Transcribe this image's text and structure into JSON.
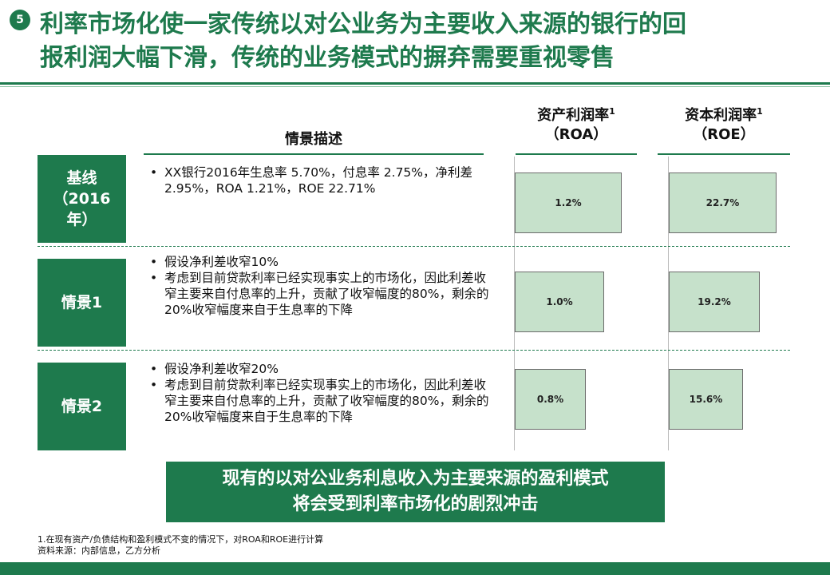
{
  "slide": {
    "page_number": "5",
    "title_line1": "利率市场化使一家传统以对公业务为主要收入来源的银行的回",
    "title_line2": "报利润大幅下滑，传统的业务模式的摒弃需要重视零售"
  },
  "table": {
    "headers": {
      "description": "情景描述",
      "roa_line1": "资产利润率",
      "roa_sup": "1",
      "roa_line2": "（ROA）",
      "roe_line1": "资本利润率",
      "roe_sup": "1",
      "roe_line2": "（ROE）"
    },
    "rows": [
      {
        "label_lines": [
          "基线",
          "（2016",
          "年）"
        ],
        "bullets": [
          "XX银行2016年生息率 5.70%，付息率 2.75%，净利差 2.95%，ROA 1.21%，ROE 22.71%"
        ],
        "roa": "1.2%",
        "roa_value": 1.2,
        "roe": "22.7%",
        "roe_value": 22.7
      },
      {
        "label_lines": [
          "情景1"
        ],
        "bullets": [
          "假设净利差收窄10%",
          "考虑到目前贷款利率已经实现事实上的市场化，因此利差收窄主要来自付息率的上升，贡献了收窄幅度的80%，剩余的20%收窄幅度来自于生息率的下降"
        ],
        "roa": "1.0%",
        "roa_value": 1.0,
        "roe": "19.2%",
        "roe_value": 19.2
      },
      {
        "label_lines": [
          "情景2"
        ],
        "bullets": [
          "假设净利差收窄20%",
          "考虑到目前贷款利率已经实现事实上的市场化，因此利差收窄主要来自付息率的上升，贡献了收窄幅度的80%，剩余的20%收窄幅度来自于生息率的下降"
        ],
        "roa": "0.8%",
        "roa_value": 0.8,
        "roe": "15.6%",
        "roe_value": 15.6
      }
    ]
  },
  "conclusion": {
    "line1": "现有的以对公业务利息收入为主要来源的盈利模式",
    "line2": "将会受到利率市场化的剧烈冲击"
  },
  "footnote": {
    "line1": "1.在现有资产/负债结构和盈利模式不变的情况下，对ROA和ROE进行计算",
    "line2": "资料来源：内部信息，乙方分析"
  },
  "colors": {
    "brand_green": "#1e7a4d",
    "bar_fill": "#c6e1cb"
  }
}
